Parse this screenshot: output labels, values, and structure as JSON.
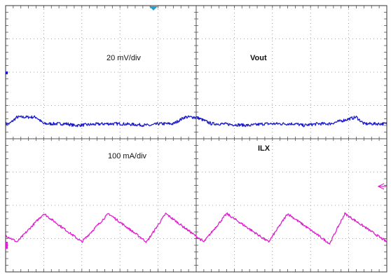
{
  "chart_data": {
    "type": "line",
    "grid": true,
    "divisions": {
      "x": 10,
      "y": 8
    },
    "series": [
      {
        "name": "Vout",
        "scale_label": "20 mV/div",
        "color": "#1a1acc",
        "unit": "div",
        "x": [
          0.0,
          0.1,
          0.3,
          0.8,
          1.0,
          1.6,
          1.8,
          2.6,
          3.0,
          3.8,
          4.0,
          4.4,
          4.7,
          5.0,
          5.4,
          5.6,
          6.4,
          6.8,
          7.6,
          7.8,
          8.2,
          8.5,
          9.2,
          9.4,
          10.0
        ],
        "y": [
          4.45,
          4.45,
          4.65,
          4.65,
          4.45,
          4.45,
          4.4,
          4.45,
          4.45,
          4.4,
          4.45,
          4.45,
          4.65,
          4.65,
          4.45,
          4.45,
          4.4,
          4.45,
          4.45,
          4.4,
          4.45,
          4.45,
          4.65,
          4.45,
          4.45
        ]
      },
      {
        "name": "ILX",
        "scale_label": "100 mA/div",
        "color": "#e020d0",
        "unit": "div",
        "x": [
          0.0,
          0.3,
          1.0,
          2.0,
          2.7,
          3.7,
          4.2,
          5.2,
          5.8,
          6.9,
          7.4,
          8.5,
          8.9,
          10.0
        ],
        "y": [
          1.1,
          0.9,
          1.75,
          0.9,
          1.75,
          0.9,
          1.75,
          0.9,
          1.75,
          0.9,
          1.75,
          0.85,
          1.75,
          0.9
        ]
      }
    ]
  }
}
